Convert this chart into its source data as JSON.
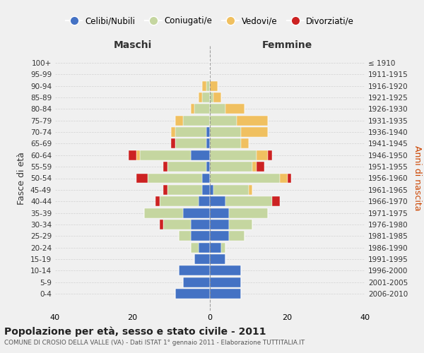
{
  "age_groups": [
    "0-4",
    "5-9",
    "10-14",
    "15-19",
    "20-24",
    "25-29",
    "30-34",
    "35-39",
    "40-44",
    "45-49",
    "50-54",
    "55-59",
    "60-64",
    "65-69",
    "70-74",
    "75-79",
    "80-84",
    "85-89",
    "90-94",
    "95-99",
    "100+"
  ],
  "birth_years": [
    "2006-2010",
    "2001-2005",
    "1996-2000",
    "1991-1995",
    "1986-1990",
    "1981-1985",
    "1976-1980",
    "1971-1975",
    "1966-1970",
    "1961-1965",
    "1956-1960",
    "1951-1955",
    "1946-1950",
    "1941-1945",
    "1936-1940",
    "1931-1935",
    "1926-1930",
    "1921-1925",
    "1916-1920",
    "1911-1915",
    "≤ 1910"
  ],
  "colors": {
    "celibe": "#4472C4",
    "coniugato": "#C5D6A0",
    "vedovo": "#F0C060",
    "divorziato": "#CC2222"
  },
  "maschi": {
    "celibe": [
      9,
      7,
      8,
      4,
      3,
      5,
      5,
      7,
      3,
      2,
      2,
      1,
      5,
      1,
      1,
      0,
      0,
      0,
      0,
      0,
      0
    ],
    "coniugato": [
      0,
      0,
      0,
      0,
      2,
      3,
      7,
      10,
      10,
      9,
      14,
      10,
      13,
      8,
      8,
      7,
      4,
      2,
      1,
      0,
      0
    ],
    "vedovo": [
      0,
      0,
      0,
      0,
      0,
      0,
      0,
      0,
      0,
      0,
      0,
      0,
      1,
      0,
      1,
      2,
      1,
      1,
      1,
      0,
      0
    ],
    "divorziato": [
      0,
      0,
      0,
      0,
      0,
      0,
      1,
      0,
      1,
      1,
      3,
      1,
      2,
      1,
      0,
      0,
      0,
      0,
      0,
      0,
      0
    ]
  },
  "femmine": {
    "celibe": [
      8,
      8,
      8,
      4,
      3,
      5,
      5,
      5,
      4,
      1,
      0,
      0,
      0,
      0,
      0,
      0,
      0,
      0,
      0,
      0,
      0
    ],
    "coniugato": [
      0,
      0,
      0,
      0,
      1,
      4,
      6,
      10,
      12,
      9,
      18,
      11,
      12,
      8,
      8,
      7,
      4,
      1,
      0,
      0,
      0
    ],
    "vedovo": [
      0,
      0,
      0,
      0,
      0,
      0,
      0,
      0,
      0,
      1,
      2,
      1,
      3,
      2,
      7,
      8,
      5,
      2,
      2,
      0,
      0
    ],
    "divorziato": [
      0,
      0,
      0,
      0,
      0,
      0,
      0,
      0,
      2,
      0,
      1,
      2,
      1,
      0,
      0,
      0,
      0,
      0,
      0,
      0,
      0
    ]
  },
  "xlim": 40,
  "title": "Popolazione per età, sesso e stato civile - 2011",
  "subtitle": "COMUNE DI CROSIO DELLA VALLE (VA) - Dati ISTAT 1° gennaio 2011 - Elaborazione TUTTITALIA.IT",
  "ylabel_left": "Fasce di età",
  "ylabel_right": "Anni di nascita",
  "xlabel_left": "Maschi",
  "xlabel_right": "Femmine",
  "legend_labels": [
    "Celibi/Nubili",
    "Coniugati/e",
    "Vedovi/e",
    "Divorziati/e"
  ],
  "background_color": "#f0f0f0"
}
